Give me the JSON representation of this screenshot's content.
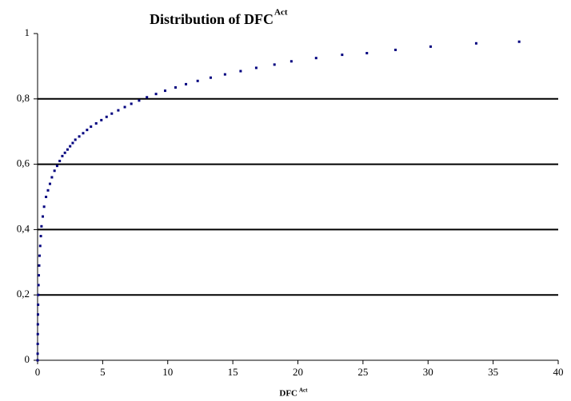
{
  "chart_data": {
    "type": "scatter",
    "title": "Distribution of DFC",
    "title_superscript": "Act",
    "x_label": "DFC",
    "x_label_superscript": "Act",
    "xlim": [
      0,
      40
    ],
    "xticks": [
      0,
      5,
      10,
      15,
      20,
      25,
      30,
      35,
      40
    ],
    "ylim": [
      0,
      1
    ],
    "yticks": [
      0,
      {
        "value": 0.2,
        "label": "0,2"
      },
      {
        "value": 0.4,
        "label": "0,4"
      },
      {
        "value": 0.6,
        "label": "0,6"
      },
      {
        "value": 0.8,
        "label": "0,8"
      },
      1
    ],
    "grid": true,
    "series": [
      {
        "color": "#00007f",
        "x": [
          37,
          33.7,
          30.2,
          27.5,
          25.3,
          23.4,
          21.4,
          19.5,
          18.2,
          16.8,
          15.6,
          14.4,
          13.3,
          12.3,
          11.4,
          10.6,
          9.8,
          9.1,
          8.4,
          7.8,
          7.2,
          6.7,
          6.2,
          5.7,
          5.3,
          4.9,
          4.5,
          4.1,
          3.8,
          3.5,
          3.2,
          2.9,
          2.7,
          2.5,
          2.3,
          2.1,
          1.9,
          1.7,
          1.5,
          1.3,
          1.1,
          0.95,
          0.8,
          0.65,
          0.5,
          0.4,
          0.3,
          0.25,
          0.2,
          0.15,
          0.12,
          0.09,
          0.07,
          0.05,
          0.04,
          0.03,
          0.02,
          0.015,
          0.01,
          0.005,
          0
        ],
        "values": [
          0.975,
          0.97,
          0.96,
          0.95,
          0.94,
          0.935,
          0.925,
          0.915,
          0.905,
          0.895,
          0.885,
          0.875,
          0.865,
          0.855,
          0.845,
          0.835,
          0.825,
          0.815,
          0.805,
          0.795,
          0.785,
          0.775,
          0.765,
          0.755,
          0.745,
          0.735,
          0.725,
          0.715,
          0.705,
          0.695,
          0.685,
          0.675,
          0.665,
          0.655,
          0.645,
          0.635,
          0.625,
          0.61,
          0.595,
          0.58,
          0.56,
          0.54,
          0.52,
          0.5,
          0.47,
          0.44,
          0.41,
          0.38,
          0.35,
          0.32,
          0.29,
          0.26,
          0.23,
          0.2,
          0.17,
          0.14,
          0.11,
          0.08,
          0.05,
          0.02,
          0
        ]
      }
    ]
  }
}
